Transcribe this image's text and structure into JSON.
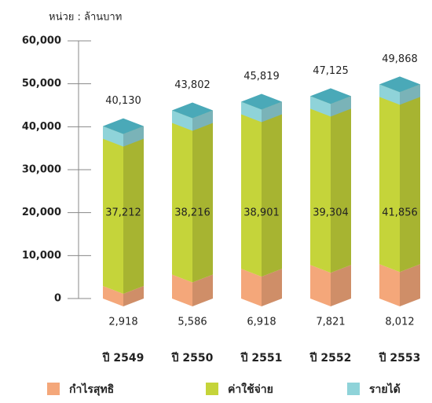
{
  "chart_data": {
    "type": "bar3d",
    "unit_label": "หน่วย : ล้านบาท",
    "categories": [
      "ปี 2549",
      "ปี 2550",
      "ปี 2551",
      "ปี 2552",
      "ปี 2553"
    ],
    "series": [
      {
        "name": "กำไรสุทธิ",
        "color": "#f4a77a",
        "values": [
          2918,
          5586,
          6918,
          7821,
          8012
        ],
        "value_labels": [
          "2,918",
          "5,586",
          "6,918",
          "7,821",
          "8,012"
        ]
      },
      {
        "name": "ค่าใช้จ่าย",
        "color": "#c5d43a",
        "values": [
          37212,
          38216,
          38901,
          39304,
          41856
        ],
        "value_labels": [
          "37,212",
          "38,216",
          "38,901",
          "39,304",
          "41,856"
        ]
      },
      {
        "name": "รายได้",
        "color": "#8fd3d9",
        "values": [
          40130,
          43802,
          45819,
          47125,
          49868
        ],
        "value_labels": [
          "40,130",
          "43,802",
          "45,819",
          "47,125",
          "49,868"
        ]
      }
    ],
    "ylim": [
      0,
      60000
    ],
    "yticks": [
      0,
      {
        "value": 10000,
        "label": "10,000"
      },
      {
        "value": 20000,
        "label": "20,000"
      },
      {
        "value": 30000,
        "label": "30,000"
      },
      {
        "value": 40000,
        "label": "40,000"
      },
      {
        "value": 50000,
        "label": "50,000"
      },
      {
        "value": 60000,
        "label": "60,000"
      }
    ]
  }
}
